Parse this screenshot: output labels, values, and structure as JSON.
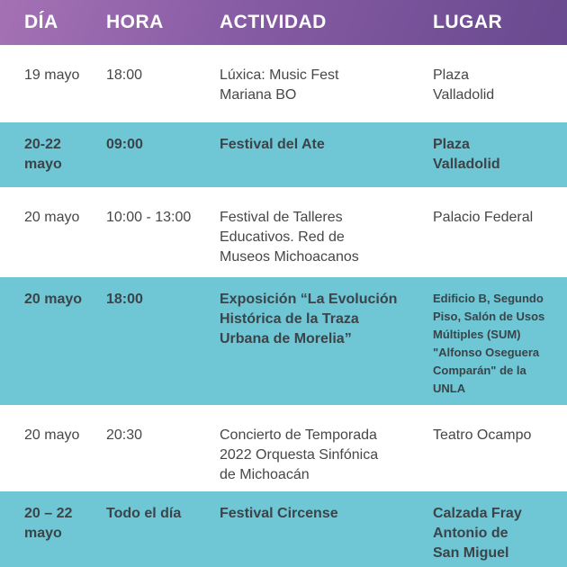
{
  "table": {
    "columns": [
      "DÍA",
      "HORA",
      "ACTIVIDAD",
      "LUGAR"
    ],
    "rows": [
      {
        "dia": "19 mayo",
        "hora": "18:00",
        "actividad": "Lúxica: Music Fest\nMariana BO",
        "lugar": "Plaza\nValladolid",
        "highlighted": false
      },
      {
        "dia": "20-22\nmayo",
        "hora": "09:00",
        "actividad": "Festival del Ate",
        "lugar": "Plaza\nValladolid",
        "highlighted": true
      },
      {
        "dia": "20 mayo",
        "hora": "10:00 - 13:00",
        "actividad": "Festival de Talleres\nEducativos. Red de\nMuseos Michoacanos",
        "lugar": "Palacio Federal",
        "highlighted": false
      },
      {
        "dia": "20 mayo",
        "hora": "18:00",
        "actividad": "Exposición “La Evolución\nHistórica de la Traza\nUrbana de Morelia”",
        "lugar": "Edificio B, Segundo\nPiso, Salón de Usos\nMúltiples (SUM)\n\"Alfonso Oseguera\nComparán\" de la\nUNLA",
        "highlighted": true
      },
      {
        "dia": "20 mayo",
        "hora": "20:30",
        "actividad": "Concierto de Temporada\n2022 Orquesta Sinfónica\nde Michoacán",
        "lugar": "Teatro Ocampo",
        "highlighted": false
      },
      {
        "dia": "20 – 22\nmayo",
        "hora": "Todo el día",
        "actividad": "Festival Circense",
        "lugar": "Calzada Fray\nAntonio de\nSan Miguel",
        "highlighted": true
      }
    ]
  },
  "colors": {
    "header_gradient_start": "#a571b5",
    "header_gradient_end": "#69498f",
    "highlight_row": "#6fc6d5",
    "body_text": "#474747",
    "highlight_text": "#3a4449",
    "header_text": "#ffffff"
  }
}
